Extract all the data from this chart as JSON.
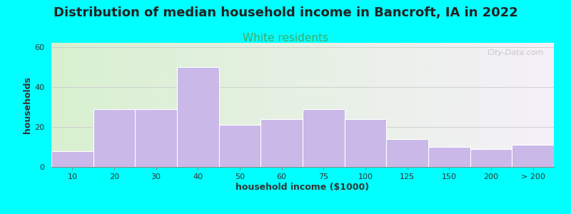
{
  "title": "Distribution of median household income in Bancroft, IA in 2022",
  "subtitle": "White residents",
  "xlabel": "household income ($1000)",
  "ylabel": "households",
  "background_color": "#00FFFF",
  "plot_bg_left": "#d8f0d0",
  "plot_bg_right": "#f5f0f8",
  "bar_color": "#c9b8e8",
  "bar_edge_color": "#ffffff",
  "categories": [
    "10",
    "20",
    "30",
    "40",
    "50",
    "60",
    "75",
    "100",
    "125",
    "150",
    "200",
    "> 200"
  ],
  "values": [
    8,
    29,
    29,
    50,
    21,
    24,
    29,
    24,
    14,
    10,
    9,
    11
  ],
  "ylim": [
    0,
    62
  ],
  "yticks": [
    0,
    20,
    40,
    60
  ],
  "title_fontsize": 13,
  "subtitle_fontsize": 11,
  "subtitle_color": "#44aa66",
  "axis_label_fontsize": 9,
  "tick_fontsize": 8,
  "watermark": "City-Data.com"
}
